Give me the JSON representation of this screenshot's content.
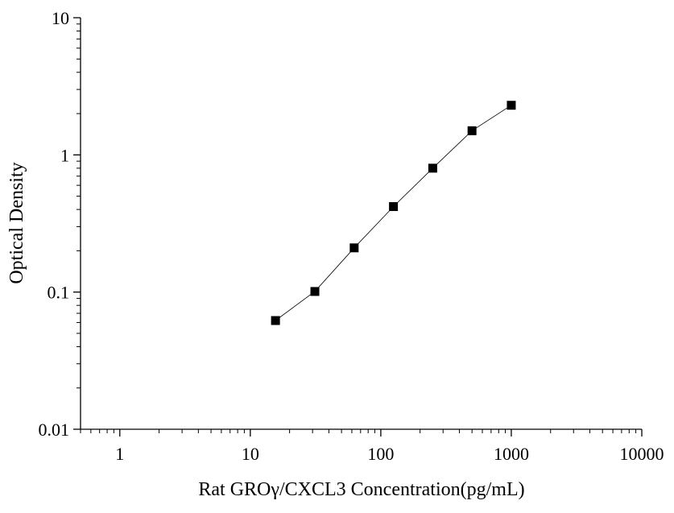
{
  "chart_data": {
    "type": "scatter",
    "title": "",
    "xlabel": "Rat GROγ/CXCL3 Concentration(pg/mL)",
    "ylabel": "Optical Density",
    "x_scale": "log",
    "y_scale": "log",
    "xlim": [
      0.5,
      10000
    ],
    "ylim": [
      0.01,
      10
    ],
    "x_ticks": [
      "1",
      "10",
      "100",
      "1000",
      "10000"
    ],
    "y_ticks": [
      "0.01",
      "0.1",
      "1",
      "10"
    ],
    "grid": false,
    "legend": "none",
    "series": [
      {
        "x": [
          15.6,
          31.25,
          62.5,
          125,
          250,
          500,
          1000
        ],
        "y": [
          0.062,
          0.101,
          0.21,
          0.42,
          0.8,
          1.5,
          2.3
        ],
        "marker": "square",
        "connect": true,
        "color": "#000000"
      }
    ]
  }
}
